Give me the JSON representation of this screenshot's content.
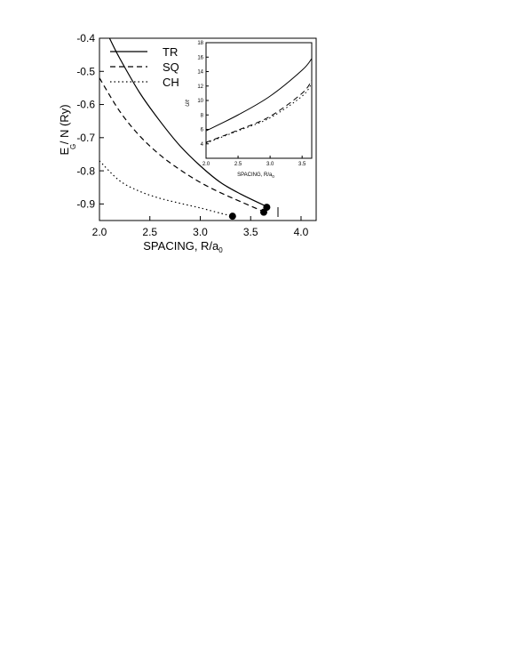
{
  "chart_data": [
    {
      "type": "line",
      "xlabel": "SPACING, R/a",
      "xlabel_sub": "0",
      "ylabel": "E / N   (Ry)",
      "ylabel_sub": "G",
      "xlim": [
        2.0,
        4.15
      ],
      "ylim": [
        -0.95,
        -0.4
      ],
      "xticks": [
        "2.0",
        "2.5",
        "3.0",
        "3.5",
        "4.0"
      ],
      "yticks": [
        "-0.4",
        "-0.5",
        "-0.6",
        "-0.7",
        "-0.8",
        "-0.9"
      ],
      "legend_position": "top-left",
      "series": [
        {
          "name": "TR",
          "style": "solid",
          "x": [
            2.1,
            2.2,
            2.4,
            2.6,
            2.8,
            3.0,
            3.2,
            3.4,
            3.66
          ],
          "y": [
            -0.4,
            -0.46,
            -0.565,
            -0.65,
            -0.725,
            -0.785,
            -0.835,
            -0.87,
            -0.908
          ]
        },
        {
          "name": "SQ",
          "style": "dashed",
          "x": [
            2.0,
            2.2,
            2.4,
            2.6,
            2.8,
            3.0,
            3.2,
            3.4,
            3.62
          ],
          "y": [
            -0.52,
            -0.62,
            -0.695,
            -0.752,
            -0.797,
            -0.835,
            -0.866,
            -0.893,
            -0.922
          ]
        },
        {
          "name": "CH",
          "style": "dotted",
          "x": [
            2.0,
            2.2,
            2.4,
            2.6,
            2.8,
            3.0,
            3.2,
            3.32
          ],
          "y": [
            -0.77,
            -0.83,
            -0.862,
            -0.883,
            -0.898,
            -0.912,
            -0.928,
            -0.937
          ]
        }
      ],
      "markers": [
        {
          "x": 3.32,
          "y": -0.937
        },
        {
          "x": 3.63,
          "y": -0.925
        },
        {
          "x": 3.66,
          "y": -0.91
        }
      ]
    },
    {
      "type": "line",
      "xlabel": "SPACING, R/a",
      "xlabel_sub": "0",
      "ylabel": "U/t",
      "xlim": [
        2.0,
        3.65
      ],
      "ylim": [
        2,
        18
      ],
      "xticks": [
        "2.0",
        "2.5",
        "3.0",
        "3.5"
      ],
      "yticks": [
        "4",
        "6",
        "8",
        "10",
        "12",
        "14",
        "16",
        "18"
      ],
      "series": [
        {
          "style": "solid",
          "x": [
            2.0,
            2.5,
            3.0,
            3.5,
            3.65
          ],
          "y": [
            5.8,
            8.0,
            10.6,
            14.2,
            15.8
          ]
        },
        {
          "style": "dashed",
          "x": [
            2.0,
            2.5,
            3.0,
            3.5,
            3.65
          ],
          "y": [
            4.2,
            5.9,
            7.8,
            11.0,
            12.8
          ]
        },
        {
          "style": "dotted",
          "x": [
            2.0,
            2.5,
            3.0,
            3.5,
            3.65
          ],
          "y": [
            4.1,
            5.8,
            7.6,
            10.6,
            12.4
          ]
        }
      ]
    }
  ]
}
